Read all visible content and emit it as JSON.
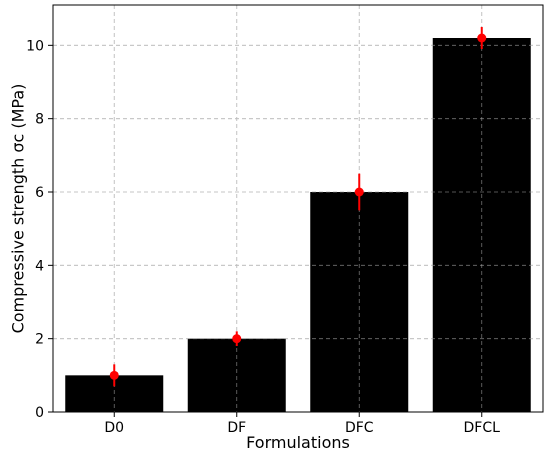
{
  "chart_data": {
    "type": "bar",
    "title": "",
    "xlabel": "Formulations",
    "ylabel": "Compressive strength σc (MPa)",
    "categories": [
      "D0",
      "DF",
      "DFC",
      "DFCL"
    ],
    "values": [
      1.0,
      2.0,
      6.0,
      10.2
    ],
    "errors": [
      0.3,
      0.2,
      0.5,
      0.3
    ],
    "ylim": [
      0,
      11.1
    ],
    "yticks": [
      0,
      2,
      4,
      6,
      8,
      10
    ],
    "grid": true,
    "bar_color": "#000000",
    "marker_color": "#ff0000",
    "error_color": "#ff0000"
  }
}
